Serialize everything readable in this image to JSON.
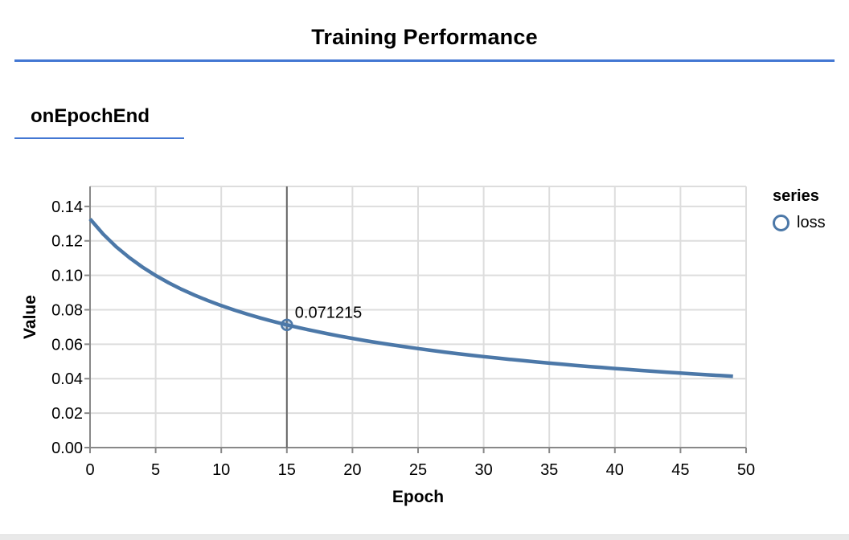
{
  "page": {
    "title": "Training Performance",
    "accent_color": "#4377d3",
    "background_color": "#ffffff",
    "bottom_strip_color": "#e9e9e9"
  },
  "section": {
    "heading": "onEpochEnd"
  },
  "colors": {
    "grid": "#dddddd",
    "axis": "#888888",
    "hover_line": "#666666",
    "series_line": "#4c78a8",
    "marker_fill": "rgba(76,120,168,0.35)",
    "text": "#000000"
  },
  "chart_data": {
    "type": "line",
    "xlabel": "Epoch",
    "ylabel": "Value",
    "x_domain": [
      0,
      50
    ],
    "y_domain": [
      0,
      0.1516
    ],
    "x_ticks": [
      0,
      5,
      10,
      15,
      20,
      25,
      30,
      35,
      40,
      45,
      50
    ],
    "y_ticks": [
      0,
      0.02,
      0.04,
      0.06,
      0.08,
      0.1,
      0.12,
      0.14
    ],
    "grid": true,
    "legend": {
      "title": "series",
      "position": "right",
      "items": [
        {
          "label": "loss",
          "color": "#4c78a8"
        }
      ]
    },
    "hover": {
      "x": 15,
      "value": 0.071215,
      "label": "0.071215"
    },
    "series": [
      {
        "name": "loss",
        "color": "#4c78a8",
        "points": [
          [
            0,
            0.132716
          ],
          [
            1,
            0.12394
          ],
          [
            2,
            0.116543
          ],
          [
            3,
            0.110204
          ],
          [
            4,
            0.104719
          ],
          [
            5,
            0.0999
          ],
          [
            6,
            0.095631
          ],
          [
            7,
            0.091813
          ],
          [
            8,
            0.088371
          ],
          [
            9,
            0.085258
          ],
          [
            10,
            0.082419
          ],
          [
            11,
            0.079821
          ],
          [
            12,
            0.077424
          ],
          [
            13,
            0.075213
          ],
          [
            14,
            0.073154
          ],
          [
            15,
            0.071215
          ],
          [
            16,
            0.069472
          ],
          [
            17,
            0.067806
          ],
          [
            18,
            0.066237
          ],
          [
            19,
            0.064755
          ],
          [
            20,
            0.063374
          ],
          [
            21,
            0.062062
          ],
          [
            22,
            0.060821
          ],
          [
            23,
            0.059646
          ],
          [
            24,
            0.058518
          ],
          [
            25,
            0.057455
          ],
          [
            26,
            0.056441
          ],
          [
            27,
            0.055471
          ],
          [
            28,
            0.054545
          ],
          [
            29,
            0.053658
          ],
          [
            30,
            0.052808
          ],
          [
            31,
            0.051993
          ],
          [
            32,
            0.051211
          ],
          [
            33,
            0.050458
          ],
          [
            34,
            0.049734
          ],
          [
            35,
            0.049036
          ],
          [
            36,
            0.048364
          ],
          [
            37,
            0.047715
          ],
          [
            38,
            0.047088
          ],
          [
            39,
            0.046483
          ],
          [
            40,
            0.045897
          ],
          [
            41,
            0.045331
          ],
          [
            42,
            0.044782
          ],
          [
            43,
            0.044251
          ],
          [
            44,
            0.043735
          ],
          [
            45,
            0.043236
          ],
          [
            46,
            0.04275
          ],
          [
            47,
            0.042279
          ],
          [
            48,
            0.041821
          ],
          [
            49,
            0.041375
          ]
        ]
      }
    ]
  }
}
